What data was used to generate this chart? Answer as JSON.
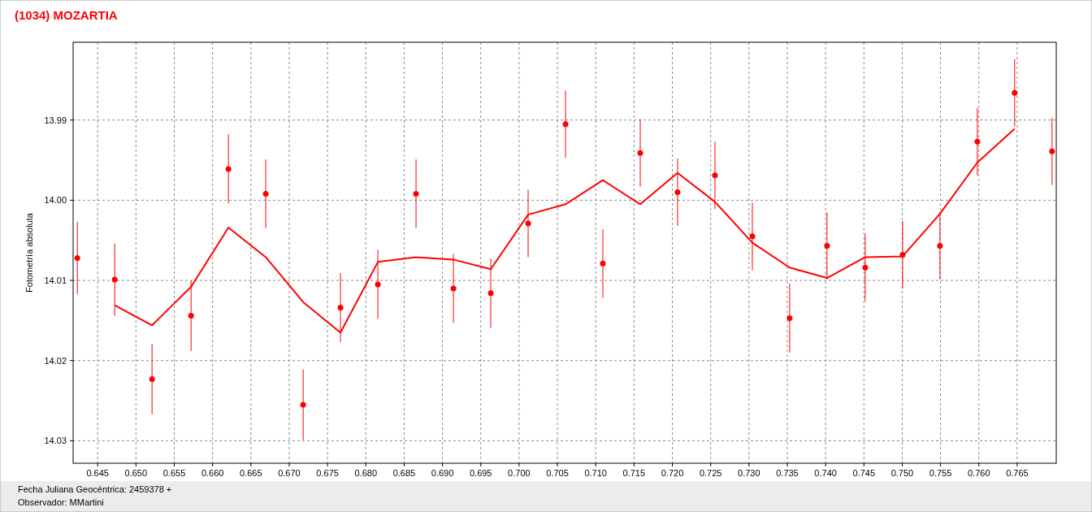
{
  "chart_data": {
    "type": "scatter",
    "title": "(1034) MOZARTIA",
    "xlabel": "Fecha Juliana Geocéntrica: 2459378 +",
    "ylabel": "Fotometría absoluta",
    "annotations": [
      "Observador: MMartini"
    ],
    "xlim": [
      0.6418,
      0.7701
    ],
    "ylim": [
      14.0328,
      13.9803
    ],
    "xticks": [
      {
        "value": 0.645,
        "label": "0.645"
      },
      {
        "value": 0.65,
        "label": "0.650"
      },
      {
        "value": 0.655,
        "label": "0.655"
      },
      {
        "value": 0.66,
        "label": "0.660"
      },
      {
        "value": 0.665,
        "label": "0.665"
      },
      {
        "value": 0.67,
        "label": "0.670"
      },
      {
        "value": 0.675,
        "label": "0.675"
      },
      {
        "value": 0.68,
        "label": "0.680"
      },
      {
        "value": 0.685,
        "label": "0.685"
      },
      {
        "value": 0.69,
        "label": "0.690"
      },
      {
        "value": 0.695,
        "label": "0.695"
      },
      {
        "value": 0.7,
        "label": "0.700"
      },
      {
        "value": 0.705,
        "label": "0.705"
      },
      {
        "value": 0.71,
        "label": "0.710"
      },
      {
        "value": 0.715,
        "label": "0.715"
      },
      {
        "value": 0.72,
        "label": "0.720"
      },
      {
        "value": 0.725,
        "label": "0.725"
      },
      {
        "value": 0.73,
        "label": "0.730"
      },
      {
        "value": 0.735,
        "label": "0.735"
      },
      {
        "value": 0.74,
        "label": "0.740"
      },
      {
        "value": 0.745,
        "label": "0.745"
      },
      {
        "value": 0.75,
        "label": "0.750"
      },
      {
        "value": 0.755,
        "label": "0.755"
      },
      {
        "value": 0.76,
        "label": "0.760"
      },
      {
        "value": 0.765,
        "label": "0.765"
      }
    ],
    "yticks": [
      13.99,
      {
        "value": 14,
        "label": "14.00"
      },
      14.01,
      14.02,
      14.03
    ],
    "grid": true,
    "series": [
      {
        "color": "#ff0000",
        "marker": "circle",
        "x": [
          0.64235,
          0.64723,
          0.6521,
          0.65719,
          0.66207,
          0.66694,
          0.67182,
          0.67669,
          0.68157,
          0.68655,
          0.69143,
          0.6963,
          0.70118,
          0.70606,
          0.71093,
          0.71581,
          0.72068,
          0.72556,
          0.73044,
          0.73531,
          0.74019,
          0.74517,
          0.75005,
          0.75492,
          0.7598,
          0.76467,
          0.76955
        ],
        "values": [
          14.0072,
          14.0099,
          14.0223,
          14.0144,
          13.9961,
          13.9992,
          14.0255,
          14.0134,
          14.0105,
          13.9992,
          14.011,
          14.0116,
          14.0029,
          13.9905,
          14.0079,
          13.9941,
          13.999,
          13.9969,
          14.0045,
          14.0147,
          14.0057,
          14.0084,
          14.0068,
          14.0057,
          13.9927,
          13.9866,
          13.9939
        ],
        "errors": [
          0.0045,
          0.0045,
          0.0044,
          0.0044,
          0.0043,
          0.0043,
          0.0044,
          0.0043,
          0.0043,
          0.0043,
          0.0043,
          0.0043,
          0.0042,
          0.0042,
          0.0043,
          0.0042,
          0.0042,
          0.0042,
          0.0042,
          0.0043,
          0.0042,
          0.0042,
          0.0042,
          0.0042,
          0.0042,
          0.0042,
          0.0042
        ]
      },
      {
        "type": "line",
        "color": "#ff0000",
        "marker": "none",
        "line_style": "solid",
        "x": [
          0.64723,
          0.6521,
          0.65475,
          0.65719,
          0.66207,
          0.66694,
          0.67182,
          0.67669,
          0.68157,
          0.68655,
          0.69143,
          0.6963,
          0.70118,
          0.70606,
          0.71093,
          0.71581,
          0.72068,
          0.72556,
          0.73044,
          0.73531,
          0.74019,
          0.74517,
          0.75005,
          0.75492,
          0.7598,
          0.76467
        ],
        "values": [
          14.0131,
          14.0156,
          14.0131,
          14.0108,
          14.0034,
          14.0071,
          14.0127,
          14.0165,
          14.0077,
          14.0071,
          14.0074,
          14.0086,
          14.0018,
          14.0005,
          13.9975,
          14.0005,
          13.9966,
          14.0002,
          14.0053,
          14.0084,
          14.0097,
          14.0071,
          14.007,
          14.0017,
          13.9953,
          13.9911
        ]
      }
    ]
  }
}
